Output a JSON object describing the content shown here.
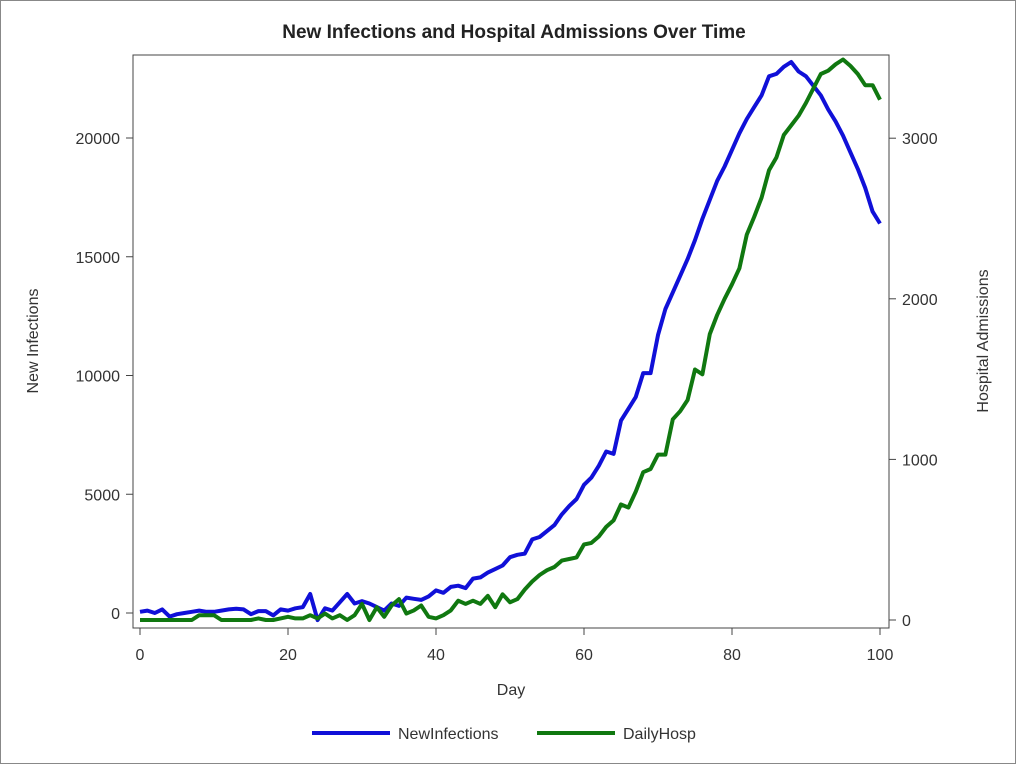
{
  "chart_data": {
    "type": "line",
    "title": "New Infections and Hospital Admissions Over Time",
    "xlabel": "Day",
    "ylabel": "New Infections",
    "y2label": "Hospital Admissions",
    "xlim": [
      0,
      100
    ],
    "ylim": [
      -800,
      24000
    ],
    "y2lim": [
      -40,
      3600
    ],
    "xticks": [
      0,
      20,
      40,
      60,
      80,
      100
    ],
    "yticks": [
      0,
      5000,
      10000,
      15000,
      20000
    ],
    "y2ticks": [
      0,
      1000,
      2000,
      3000
    ],
    "grid": false,
    "legend_position": "bottom",
    "series": [
      {
        "name": "NewInfections",
        "axis": "left",
        "color": "#1010d8",
        "values": [
          50,
          100,
          0,
          150,
          -150,
          -50,
          0,
          50,
          100,
          50,
          50,
          100,
          150,
          180,
          150,
          -50,
          80,
          80,
          -100,
          150,
          100,
          200,
          250,
          800,
          -300,
          200,
          100,
          450,
          800,
          400,
          500,
          400,
          250,
          100,
          400,
          300,
          650,
          600,
          550,
          700,
          950,
          850,
          1100,
          1150,
          1050,
          1450,
          1500,
          1700,
          1850,
          2000,
          2350,
          2450,
          2500,
          3100,
          3200,
          3450,
          3700,
          4150,
          4500,
          4800,
          5400,
          5700,
          6200,
          6800,
          6700,
          8100,
          8600,
          9100,
          10100,
          10100,
          11700,
          12800,
          13500,
          14200,
          14900,
          15700,
          16600,
          17400,
          18200,
          18800,
          19500,
          20200,
          20800,
          21300,
          21800,
          22600,
          22700,
          23000,
          23200,
          22800,
          22600,
          22200,
          21800,
          21200,
          20700,
          20100,
          19400,
          18700,
          17900,
          16900,
          16400
        ]
      },
      {
        "name": "DailyHosp",
        "axis": "right",
        "color": "#107810",
        "values": [
          0,
          0,
          0,
          0,
          0,
          0,
          0,
          0,
          30,
          30,
          30,
          0,
          0,
          0,
          0,
          0,
          10,
          0,
          0,
          10,
          20,
          10,
          10,
          30,
          10,
          40,
          10,
          30,
          0,
          30,
          100,
          0,
          80,
          20,
          90,
          130,
          40,
          60,
          90,
          20,
          10,
          30,
          60,
          120,
          100,
          120,
          100,
          150,
          80,
          160,
          110,
          130,
          190,
          240,
          280,
          310,
          330,
          370,
          380,
          390,
          470,
          480,
          520,
          580,
          620,
          720,
          700,
          800,
          920,
          940,
          1030,
          1030,
          1250,
          1300,
          1370,
          1560,
          1530,
          1780,
          1900,
          2000,
          2090,
          2190,
          2400,
          2510,
          2630,
          2800,
          2880,
          3020,
          3080,
          3140,
          3220,
          3310,
          3400,
          3420,
          3460,
          3490,
          3450,
          3400,
          3330,
          3330,
          3240
        ]
      }
    ]
  }
}
